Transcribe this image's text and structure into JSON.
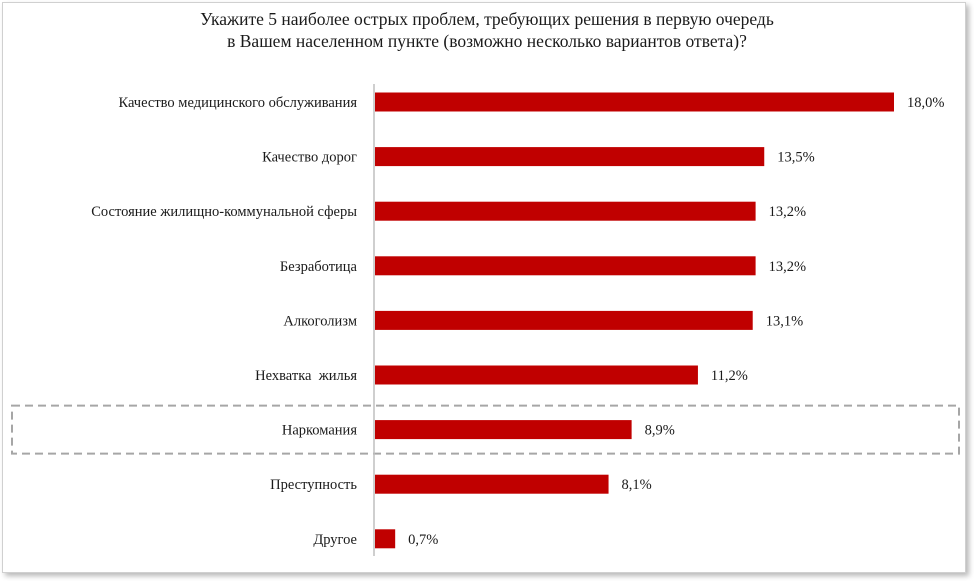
{
  "chart_data": {
    "type": "bar",
    "orientation": "horizontal",
    "title_lines": [
      "Укажите 5 наиболее острых проблем, требующих решения в первую очередь",
      "в Вашем населенном пункте (возможно несколько вариантов ответа)?"
    ],
    "categories": [
      "Качество медицинского обслуживания",
      "Качество дорог",
      "Состояние жилищно-коммунальной сферы",
      "Безработица",
      "Алкоголизм",
      "Нехватка  жилья",
      "Наркомания",
      "Преступность",
      "Другое"
    ],
    "values": [
      18.0,
      13.5,
      13.2,
      13.2,
      13.1,
      11.2,
      8.9,
      8.1,
      0.7
    ],
    "value_labels": [
      "18,0%",
      "13,5%",
      "13,2%",
      "13,2%",
      "13,1%",
      "11,2%",
      "8,9%",
      "8,1%",
      "0,7%"
    ],
    "unit": "%",
    "highlighted_category": "Наркомания",
    "xlim": [
      0,
      18.0
    ],
    "bar_color": "#c00000",
    "axis_color": "#bfbfbf",
    "highlight_border_color": "#a6a6a6",
    "grid": false,
    "legend": "none"
  }
}
